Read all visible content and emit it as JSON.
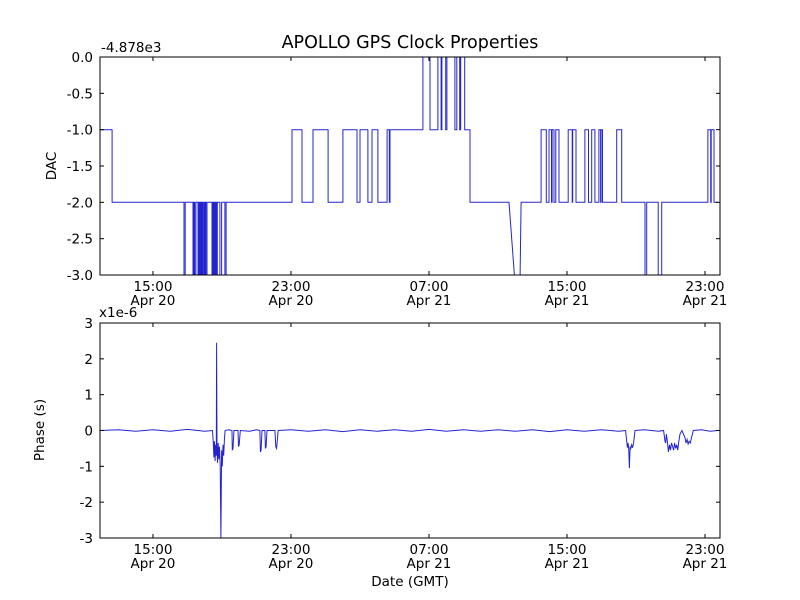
{
  "figure": {
    "title": "APOLLO GPS Clock Properties",
    "xlabel": "Date (GMT)",
    "background_color": "#ffffff",
    "line_color": "#2424cf",
    "spine_color": "#000000"
  },
  "chart_data": [
    {
      "type": "line",
      "subplot": "top",
      "series_name": "dac-trace",
      "ylabel": "DAC",
      "offset_text": "-4.878e3",
      "ylim": [
        -3.0,
        0.0
      ],
      "yticks": [
        {
          "v": 0.0,
          "label": "0.0"
        },
        {
          "v": -0.5,
          "label": "-0.5"
        },
        {
          "v": -1.0,
          "label": "-1.0"
        },
        {
          "v": -1.5,
          "label": "-1.5"
        },
        {
          "v": -2.0,
          "label": "-2.0"
        },
        {
          "v": -2.5,
          "label": "-2.5"
        },
        {
          "v": -3.0,
          "label": "-3.0"
        }
      ],
      "xlim_hours": [
        11.93,
        47.87
      ],
      "xticks": [
        {
          "t": 15,
          "time": "15:00",
          "date": "Apr 20"
        },
        {
          "t": 23,
          "time": "23:00",
          "date": "Apr 20"
        },
        {
          "t": 31,
          "time": "07:00",
          "date": "Apr 21"
        },
        {
          "t": 39,
          "time": "15:00",
          "date": "Apr 21"
        },
        {
          "t": 47,
          "time": "23:00",
          "date": "Apr 21"
        }
      ],
      "points": [
        [
          11.93,
          -1
        ],
        [
          12.63,
          -1
        ],
        [
          12.63,
          -2
        ],
        [
          16.8,
          -2
        ],
        [
          16.8,
          -3
        ],
        [
          16.87,
          -3
        ],
        [
          16.87,
          -2
        ],
        [
          17.32,
          -2
        ],
        [
          17.32,
          -3
        ],
        [
          17.37,
          -3
        ],
        [
          17.37,
          -2
        ],
        [
          17.42,
          -2
        ],
        [
          17.42,
          -3
        ],
        [
          17.49,
          -3
        ],
        [
          17.49,
          -2
        ],
        [
          17.61,
          -2
        ],
        [
          17.61,
          -3
        ],
        [
          17.66,
          -3
        ],
        [
          17.66,
          -2
        ],
        [
          17.7,
          -2
        ],
        [
          17.7,
          -3
        ],
        [
          17.75,
          -3
        ],
        [
          17.75,
          -2
        ],
        [
          17.79,
          -2
        ],
        [
          17.79,
          -3
        ],
        [
          17.84,
          -3
        ],
        [
          17.84,
          -2
        ],
        [
          17.88,
          -2
        ],
        [
          17.88,
          -3
        ],
        [
          17.94,
          -3
        ],
        [
          17.94,
          -2
        ],
        [
          17.97,
          -2
        ],
        [
          17.97,
          -3
        ],
        [
          18.01,
          -3
        ],
        [
          18.01,
          -2
        ],
        [
          18.07,
          -2
        ],
        [
          18.07,
          -3
        ],
        [
          18.13,
          -3
        ],
        [
          18.13,
          -2
        ],
        [
          18.42,
          -2
        ],
        [
          18.42,
          -3
        ],
        [
          18.48,
          -3
        ],
        [
          18.48,
          -2
        ],
        [
          18.52,
          -2
        ],
        [
          18.52,
          -3
        ],
        [
          18.57,
          -3
        ],
        [
          18.57,
          -2
        ],
        [
          18.6,
          -2
        ],
        [
          18.6,
          -3
        ],
        [
          18.65,
          -3
        ],
        [
          18.65,
          -2
        ],
        [
          18.68,
          -2
        ],
        [
          18.68,
          -3
        ],
        [
          18.73,
          -3
        ],
        [
          18.73,
          -2
        ],
        [
          18.88,
          -2
        ],
        [
          18.88,
          -3
        ],
        [
          18.98,
          -3
        ],
        [
          18.98,
          -2
        ],
        [
          19.17,
          -2
        ],
        [
          19.17,
          -3
        ],
        [
          19.24,
          -3
        ],
        [
          19.24,
          -2
        ],
        [
          23.06,
          -2
        ],
        [
          23.06,
          -1
        ],
        [
          23.64,
          -1
        ],
        [
          23.64,
          -2
        ],
        [
          24.28,
          -2
        ],
        [
          24.28,
          -1
        ],
        [
          25.15,
          -1
        ],
        [
          25.15,
          -2
        ],
        [
          26.01,
          -2
        ],
        [
          26.01,
          -1
        ],
        [
          26.83,
          -1
        ],
        [
          26.83,
          -2
        ],
        [
          27.0,
          -2
        ],
        [
          27.0,
          -1
        ],
        [
          27.46,
          -1
        ],
        [
          27.46,
          -2
        ],
        [
          27.7,
          -2
        ],
        [
          27.7,
          -1
        ],
        [
          28.04,
          -1
        ],
        [
          28.04,
          -2
        ],
        [
          28.57,
          -2
        ],
        [
          28.57,
          -1
        ],
        [
          28.7,
          -1
        ],
        [
          28.7,
          -2
        ],
        [
          28.74,
          -2
        ],
        [
          28.74,
          -1
        ],
        [
          30.65,
          -1
        ],
        [
          30.65,
          0
        ],
        [
          31.06,
          0
        ],
        [
          31.06,
          -1
        ],
        [
          31.52,
          -1
        ],
        [
          31.52,
          0
        ],
        [
          31.7,
          0
        ],
        [
          31.7,
          -1
        ],
        [
          31.75,
          -1
        ],
        [
          31.75,
          0
        ],
        [
          31.97,
          0
        ],
        [
          31.97,
          -1
        ],
        [
          32.04,
          -1
        ],
        [
          32.04,
          0
        ],
        [
          32.5,
          0
        ],
        [
          32.5,
          -1
        ],
        [
          32.61,
          -1
        ],
        [
          32.61,
          0
        ],
        [
          32.78,
          0
        ],
        [
          32.78,
          -1
        ],
        [
          32.84,
          -1
        ],
        [
          32.84,
          0
        ],
        [
          33.07,
          0
        ],
        [
          33.07,
          -1
        ],
        [
          33.38,
          -1
        ],
        [
          33.38,
          -2
        ],
        [
          35.64,
          -2
        ],
        [
          35.95,
          -3
        ],
        [
          36.28,
          -3
        ],
        [
          36.34,
          -2
        ],
        [
          37.5,
          -2
        ],
        [
          37.5,
          -1
        ],
        [
          37.8,
          -1
        ],
        [
          37.8,
          -2
        ],
        [
          37.96,
          -2
        ],
        [
          37.96,
          -1
        ],
        [
          38.1,
          -1
        ],
        [
          38.1,
          -2
        ],
        [
          38.14,
          -2
        ],
        [
          38.14,
          -1
        ],
        [
          38.25,
          -1
        ],
        [
          38.25,
          -2
        ],
        [
          38.35,
          -2
        ],
        [
          38.35,
          -1
        ],
        [
          38.54,
          -1
        ],
        [
          38.54,
          -2
        ],
        [
          39.07,
          -2
        ],
        [
          39.07,
          -1
        ],
        [
          39.3,
          -1
        ],
        [
          39.3,
          -2
        ],
        [
          39.33,
          -2
        ],
        [
          39.33,
          -1
        ],
        [
          39.52,
          -1
        ],
        [
          39.52,
          -2
        ],
        [
          40.04,
          -2
        ],
        [
          40.04,
          -1
        ],
        [
          40.25,
          -1
        ],
        [
          40.25,
          -2
        ],
        [
          40.43,
          -2
        ],
        [
          40.43,
          -1
        ],
        [
          40.62,
          -1
        ],
        [
          40.62,
          -2
        ],
        [
          40.85,
          -2
        ],
        [
          40.85,
          -1
        ],
        [
          40.95,
          -1
        ],
        [
          40.95,
          -2
        ],
        [
          40.98,
          -2
        ],
        [
          40.98,
          -1
        ],
        [
          41.06,
          -1
        ],
        [
          41.06,
          -2
        ],
        [
          41.88,
          -2
        ],
        [
          41.88,
          -1
        ],
        [
          42.17,
          -1
        ],
        [
          42.17,
          -2
        ],
        [
          43.52,
          -2
        ],
        [
          43.52,
          -3
        ],
        [
          43.62,
          -3
        ],
        [
          43.62,
          -2
        ],
        [
          44.29,
          -2
        ],
        [
          44.29,
          -3
        ],
        [
          44.49,
          -3
        ],
        [
          44.49,
          -2
        ],
        [
          47.17,
          -2
        ],
        [
          47.17,
          -1
        ],
        [
          47.33,
          -1
        ],
        [
          47.33,
          -2
        ],
        [
          47.36,
          -2
        ],
        [
          47.36,
          -1
        ],
        [
          47.52,
          -1
        ],
        [
          47.52,
          -2
        ],
        [
          47.75,
          -2
        ]
      ]
    },
    {
      "type": "line",
      "subplot": "bottom",
      "series_name": "phase-trace",
      "ylabel": "Phase (s)",
      "offset_text": "x1e-6",
      "values_unit": "1e-6 s",
      "ylim": [
        -3,
        3
      ],
      "yticks": [
        {
          "v": 3,
          "label": "3"
        },
        {
          "v": 2,
          "label": "2"
        },
        {
          "v": 1,
          "label": "1"
        },
        {
          "v": 0,
          "label": "0"
        },
        {
          "v": -1,
          "label": "-1"
        },
        {
          "v": -2,
          "label": "-2"
        },
        {
          "v": -3,
          "label": "-3"
        }
      ],
      "xlim_hours": [
        11.93,
        47.87
      ],
      "xticks": [
        {
          "t": 15,
          "time": "15:00",
          "date": "Apr 20"
        },
        {
          "t": 23,
          "time": "23:00",
          "date": "Apr 20"
        },
        {
          "t": 31,
          "time": "07:00",
          "date": "Apr 21"
        },
        {
          "t": 39,
          "time": "15:00",
          "date": "Apr 21"
        },
        {
          "t": 47,
          "time": "23:00",
          "date": "Apr 21"
        }
      ],
      "points": [
        [
          11.93,
          0
        ],
        [
          13,
          0.02
        ],
        [
          14,
          -0.02
        ],
        [
          15,
          0.02
        ],
        [
          16,
          -0.02
        ],
        [
          17,
          0.03
        ],
        [
          18,
          -0.02
        ],
        [
          18.45,
          0
        ],
        [
          18.5,
          -0.35
        ],
        [
          18.53,
          -0.75
        ],
        [
          18.56,
          -0.3
        ],
        [
          18.6,
          -0.85
        ],
        [
          18.63,
          -0.4
        ],
        [
          18.67,
          -0.7
        ],
        [
          18.69,
          2.45
        ],
        [
          18.71,
          -0.45
        ],
        [
          18.74,
          -0.9
        ],
        [
          18.78,
          -0.35
        ],
        [
          18.82,
          -0.8
        ],
        [
          18.86,
          -0.45
        ],
        [
          18.9,
          -0.95
        ],
        [
          18.94,
          -3.0
        ],
        [
          18.98,
          -0.55
        ],
        [
          19.02,
          -1.0
        ],
        [
          19.06,
          -0.4
        ],
        [
          19.1,
          -0.7
        ],
        [
          19.14,
          -0.25
        ],
        [
          19.18,
          0
        ],
        [
          19.4,
          0.02
        ],
        [
          19.58,
          0
        ],
        [
          19.6,
          -0.55
        ],
        [
          19.64,
          -0.5
        ],
        [
          19.7,
          0
        ],
        [
          19.93,
          0
        ],
        [
          19.96,
          -0.45
        ],
        [
          20.0,
          -0.4
        ],
        [
          20.06,
          0
        ],
        [
          20.6,
          -0.02
        ],
        [
          21.0,
          0.02
        ],
        [
          21.2,
          0
        ],
        [
          21.23,
          -0.6
        ],
        [
          21.27,
          -0.55
        ],
        [
          21.32,
          0
        ],
        [
          21.49,
          0
        ],
        [
          21.52,
          -0.5
        ],
        [
          21.56,
          -0.45
        ],
        [
          21.61,
          0
        ],
        [
          22.07,
          0
        ],
        [
          22.12,
          -0.45
        ],
        [
          22.17,
          -0.5
        ],
        [
          22.26,
          0
        ],
        [
          23,
          0.02
        ],
        [
          24,
          -0.02
        ],
        [
          25,
          0.02
        ],
        [
          26,
          -0.03
        ],
        [
          27,
          0.02
        ],
        [
          28,
          -0.02
        ],
        [
          29,
          0.02
        ],
        [
          30,
          -0.02
        ],
        [
          31,
          0.03
        ],
        [
          32,
          -0.02
        ],
        [
          33,
          0.02
        ],
        [
          34,
          -0.02
        ],
        [
          35,
          0.02
        ],
        [
          36,
          -0.02
        ],
        [
          37,
          0.02
        ],
        [
          38,
          -0.03
        ],
        [
          39,
          0.02
        ],
        [
          40,
          -0.02
        ],
        [
          41,
          0.02
        ],
        [
          42,
          -0.02
        ],
        [
          42.4,
          0
        ],
        [
          42.46,
          -0.3
        ],
        [
          42.5,
          -0.48
        ],
        [
          42.54,
          -0.35
        ],
        [
          42.58,
          -0.5
        ],
        [
          42.62,
          -1.05
        ],
        [
          42.66,
          -0.45
        ],
        [
          42.7,
          -0.5
        ],
        [
          42.75,
          -0.4
        ],
        [
          42.8,
          -0.48
        ],
        [
          42.86,
          -0.35
        ],
        [
          42.94,
          0
        ],
        [
          43.5,
          0.02
        ],
        [
          44.3,
          -0.02
        ],
        [
          44.6,
          0
        ],
        [
          44.68,
          -0.3
        ],
        [
          44.72,
          -0.35
        ],
        [
          44.76,
          -0.1
        ],
        [
          44.82,
          -0.3
        ],
        [
          44.88,
          -0.6
        ],
        [
          44.94,
          -0.4
        ],
        [
          45.0,
          -0.55
        ],
        [
          45.06,
          -0.35
        ],
        [
          45.13,
          -0.45
        ],
        [
          45.18,
          -0.55
        ],
        [
          45.24,
          -0.35
        ],
        [
          45.3,
          -0.5
        ],
        [
          45.36,
          -0.4
        ],
        [
          45.42,
          -0.55
        ],
        [
          45.48,
          -0.3
        ],
        [
          45.55,
          -0.1
        ],
        [
          45.66,
          0
        ],
        [
          45.84,
          -0.2
        ],
        [
          45.9,
          -0.35
        ],
        [
          45.96,
          -0.25
        ],
        [
          46.02,
          -0.38
        ],
        [
          46.08,
          -0.3
        ],
        [
          46.15,
          -0.35
        ],
        [
          46.22,
          -0.2
        ],
        [
          46.32,
          0
        ],
        [
          46.8,
          0.02
        ],
        [
          47.3,
          -0.02
        ],
        [
          47.75,
          0
        ]
      ]
    }
  ]
}
